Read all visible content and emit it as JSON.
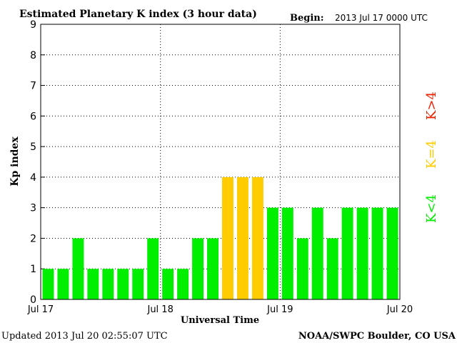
{
  "header": {
    "title": "Estimated Planetary K index (3 hour data)",
    "begin_label": "Begin:",
    "begin_value": "2013 Jul 17 0000 UTC"
  },
  "footer": {
    "updated": "Updated 2013 Jul 20 02:55:07 UTC",
    "source": "NOAA/SWPC Boulder, CO USA"
  },
  "legend": {
    "gt4": "K>4",
    "eq4": "K=4",
    "lt4": "K<4"
  },
  "colors": {
    "lt4": "#00ee00",
    "eq4": "#ffcc00",
    "gt4": "#ee2200",
    "grid": "#000000"
  },
  "chart_data": {
    "type": "bar",
    "title": "Estimated Planetary K index (3 hour data)",
    "xlabel": "Universal Time",
    "ylabel": "Kp index",
    "ylim": [
      0,
      9
    ],
    "yticks": [
      0,
      1,
      2,
      3,
      4,
      5,
      6,
      7,
      8,
      9
    ],
    "xtick_labels": [
      "Jul 17",
      "Jul 18",
      "Jul 19",
      "Jul 20"
    ],
    "grid": true,
    "values": [
      1,
      1,
      2,
      1,
      1,
      1,
      1,
      2,
      1,
      1,
      2,
      2,
      4,
      4,
      4,
      3,
      3,
      2,
      3,
      2,
      3,
      3,
      3,
      3
    ]
  }
}
